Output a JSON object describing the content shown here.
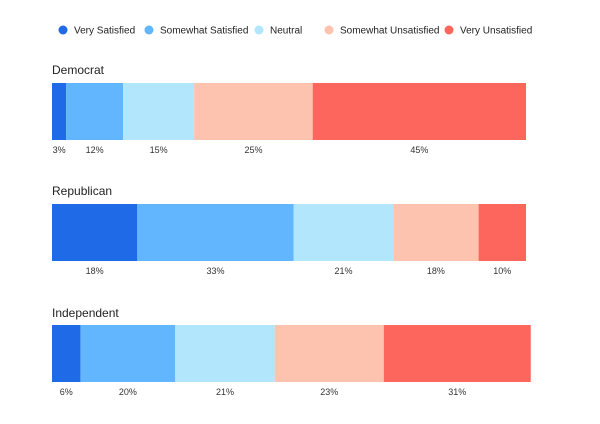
{
  "chart_data": {
    "type": "bar",
    "orientation": "horizontal",
    "stacked": true,
    "normalized": true,
    "title": "",
    "xlabel": "",
    "ylabel": "",
    "xlim": [
      0,
      100
    ],
    "grid": false,
    "legend_position": "top",
    "categories": [
      "Democrat",
      "Republican",
      "Independent"
    ],
    "series": [
      {
        "name": "Very Satisfied",
        "color": "#1f6ae6",
        "values": [
          3,
          18,
          6
        ]
      },
      {
        "name": "Somewhat Satisfied",
        "color": "#62b6fd",
        "values": [
          12,
          33,
          20
        ]
      },
      {
        "name": "Neutral",
        "color": "#b1e6fd",
        "values": [
          15,
          21,
          21
        ]
      },
      {
        "name": "Somewhat Unsatisfied",
        "color": "#fdc3ae",
        "values": [
          25,
          18,
          23
        ]
      },
      {
        "name": "Very Unsatisfied",
        "color": "#fd665c",
        "values": [
          45,
          10,
          31
        ]
      }
    ],
    "value_suffix": "%"
  }
}
